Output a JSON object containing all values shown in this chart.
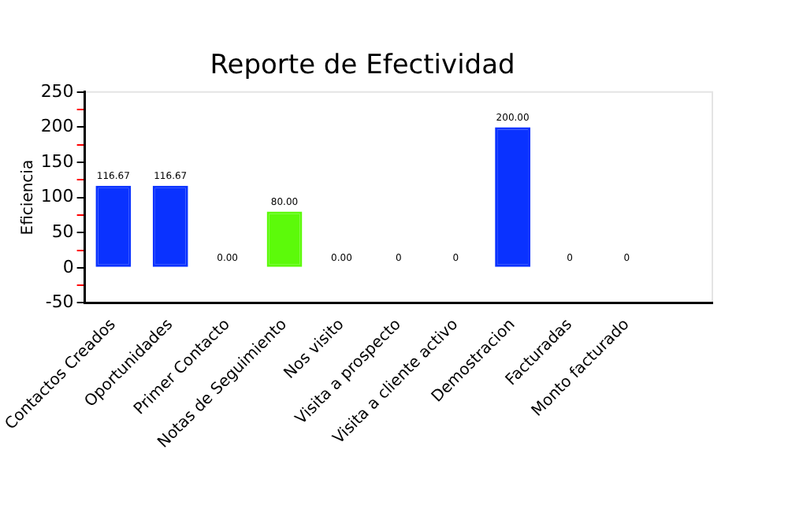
{
  "chart_data": {
    "type": "bar",
    "title": "Reporte de Efectividad",
    "ylabel": "Eficiencia",
    "categories": [
      "Contactos Creados",
      "Oportunidades",
      "Primer Contacto",
      "Notas de Seguimiento",
      "Nos visito",
      "Visita a prospecto",
      "Visita a cliente activo",
      "Demostracion",
      "Facturadas",
      "Monto facturado",
      null
    ],
    "values": [
      116.67,
      116.67,
      0,
      80,
      0,
      0,
      0,
      200,
      0,
      0,
      0
    ],
    "colors": [
      "#0a32ff",
      "#0a32ff",
      "#ff6464",
      "#5cfa0a",
      "#ff6464",
      "#ff6464",
      "#ff6464",
      "#0a32ff",
      "#ff6464",
      "#ff6464",
      "#ff6464"
    ],
    "value_labels": [
      "116.67",
      "116.67",
      "0.00",
      "80.00",
      "0.00",
      "0",
      "0",
      "200.00",
      "0",
      "0",
      null
    ],
    "ylim": [
      -50,
      250
    ],
    "yticks": [
      -50,
      {
        "value": -25,
        "label": null
      },
      0,
      {
        "value": 25,
        "label": null
      },
      50,
      {
        "value": 75,
        "label": null
      },
      100,
      {
        "value": 125,
        "label": null
      },
      150,
      {
        "value": 175,
        "label": null
      },
      200,
      {
        "value": 225,
        "label": null
      },
      250
    ],
    "grid": false,
    "legend": false
  }
}
